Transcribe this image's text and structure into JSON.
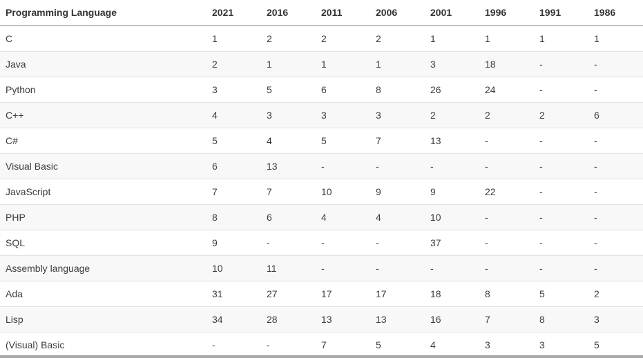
{
  "chart_data": {
    "type": "table",
    "columns": [
      "Programming Language",
      "2021",
      "2016",
      "2011",
      "2006",
      "2001",
      "1996",
      "1991",
      "1986"
    ],
    "rows": [
      [
        "C",
        "1",
        "2",
        "2",
        "2",
        "1",
        "1",
        "1",
        "1"
      ],
      [
        "Java",
        "2",
        "1",
        "1",
        "1",
        "3",
        "18",
        "-",
        "-"
      ],
      [
        "Python",
        "3",
        "5",
        "6",
        "8",
        "26",
        "24",
        "-",
        "-"
      ],
      [
        "C++",
        "4",
        "3",
        "3",
        "3",
        "2",
        "2",
        "2",
        "6"
      ],
      [
        "C#",
        "5",
        "4",
        "5",
        "7",
        "13",
        "-",
        "-",
        "-"
      ],
      [
        "Visual Basic",
        "6",
        "13",
        "-",
        "-",
        "-",
        "-",
        "-",
        "-"
      ],
      [
        "JavaScript",
        "7",
        "7",
        "10",
        "9",
        "9",
        "22",
        "-",
        "-"
      ],
      [
        "PHP",
        "8",
        "6",
        "4",
        "4",
        "10",
        "-",
        "-",
        "-"
      ],
      [
        "SQL",
        "9",
        "-",
        "-",
        "-",
        "37",
        "-",
        "-",
        "-"
      ],
      [
        "Assembly language",
        "10",
        "11",
        "-",
        "-",
        "-",
        "-",
        "-",
        "-"
      ],
      [
        "Ada",
        "31",
        "27",
        "17",
        "17",
        "18",
        "8",
        "5",
        "2"
      ],
      [
        "Lisp",
        "34",
        "28",
        "13",
        "13",
        "16",
        "7",
        "8",
        "3"
      ],
      [
        "(Visual) Basic",
        "-",
        "-",
        "7",
        "5",
        "4",
        "3",
        "3",
        "5"
      ]
    ],
    "layout": {
      "striped": true,
      "grid": "horizontal-row-separators",
      "header_position": "top"
    },
    "colors": {
      "header_text": "#333333",
      "body_text": "#3c3c3c",
      "stripe_background": "#f8f8f8",
      "row_border": "#e2e2e2",
      "header_border": "#c0c0c0",
      "scrollbar": "#a9a9a9"
    }
  }
}
